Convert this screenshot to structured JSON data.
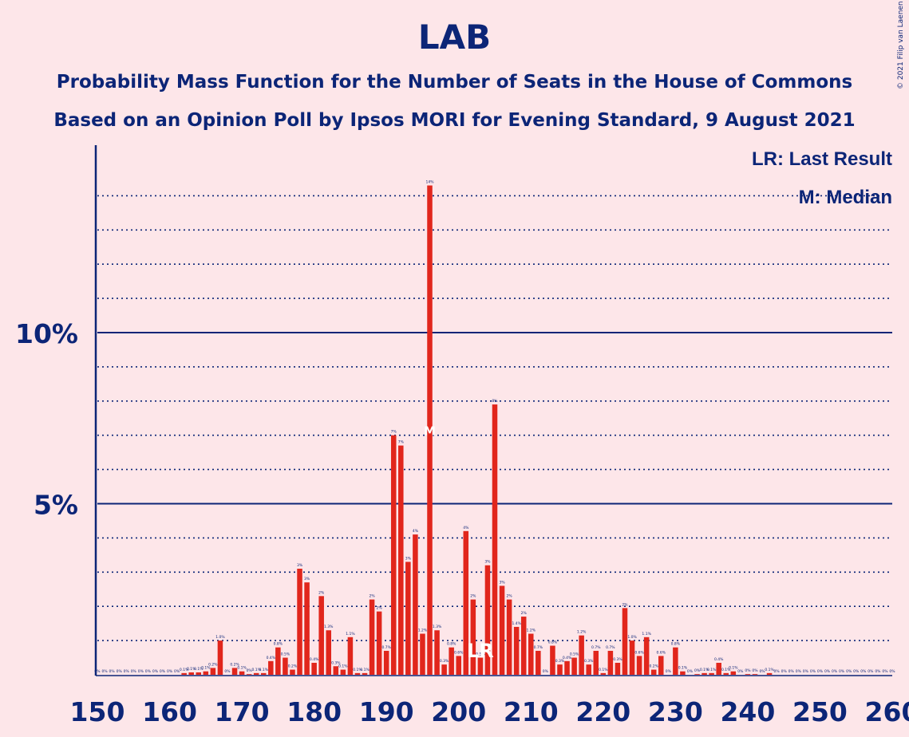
{
  "title": "LAB",
  "subtitle": "Probability Mass Function for the Number of Seats in the House of Commons",
  "subtitle2": "Based on an Opinion Poll by Ipsos MORI for Evening Standard, 9 August 2021",
  "copyright": "© 2021 Filip van Laenen",
  "legend": {
    "last_result": "LR: Last Result",
    "median": "M: Median"
  },
  "markers": {
    "last_result_label": "LR",
    "median_label": "M"
  },
  "colors": {
    "background": "#fde6e9",
    "bar": "#e1261c",
    "axis": "#0c2577"
  },
  "chart_data": {
    "type": "bar",
    "x_start": 150,
    "x_end": 260,
    "xticks": [
      150,
      160,
      170,
      180,
      190,
      200,
      210,
      220,
      230,
      240,
      250,
      260
    ],
    "ylim": [
      0,
      15.5
    ],
    "yticks": [
      {
        "value": 5,
        "label": "5%"
      },
      {
        "value": 10,
        "label": "10%"
      }
    ],
    "minor_grid": [
      1,
      2,
      3,
      4,
      6,
      7,
      8,
      9,
      11,
      12,
      13,
      14
    ],
    "last_result": 203,
    "median": 196,
    "values": [
      0,
      0,
      0,
      0,
      0,
      0,
      0,
      0,
      0,
      0,
      0,
      0,
      0.05,
      0.07,
      0.07,
      0.1,
      0.2,
      1.0,
      0,
      0.2,
      0.1,
      0.02,
      0.05,
      0.05,
      0.4,
      0.8,
      0.5,
      0.15,
      3.1,
      2.7,
      0.35,
      2.3,
      1.3,
      0.25,
      0.15,
      1.1,
      0.05,
      0.05,
      2.2,
      1.85,
      0.7,
      7.0,
      6.7,
      3.3,
      4.1,
      1.2,
      14.3,
      1.3,
      0.3,
      0.8,
      0.55,
      4.2,
      2.2,
      0.5,
      3.2,
      7.9,
      2.6,
      2.2,
      1.4,
      1.7,
      1.2,
      0.7,
      0,
      0.85,
      0.3,
      0.4,
      0.5,
      1.15,
      0.3,
      0.7,
      0.05,
      0.7,
      0.35,
      1.95,
      1.0,
      0.55,
      1.1,
      0.15,
      0.55,
      0,
      0.8,
      0.1,
      0,
      0.02,
      0.05,
      0.05,
      0.35,
      0.05,
      0.1,
      0,
      0.02,
      0.02,
      0,
      0.05,
      0,
      0,
      0,
      0,
      0,
      0,
      0,
      0,
      0,
      0,
      0,
      0,
      0,
      0,
      0,
      0,
      0
    ],
    "bar_labels": [
      "0%",
      "0%",
      "0%",
      "0%",
      "0%",
      "0%",
      "0%",
      "0%",
      "0%",
      "0%",
      "0%",
      "0%",
      "0.1%",
      "0.1%",
      "0.1%",
      "0.1%",
      "0.2%",
      "1.0%",
      "0%",
      "0.2%",
      "0.1%",
      "0%",
      "0.1%",
      "0.1%",
      "0.4%",
      "0.8%",
      "0.5%",
      "0.2%",
      "3%",
      "3%",
      "0.4%",
      "2%",
      "1.3%",
      "0.3%",
      "0.1%",
      "1.1%",
      "0.1%",
      "0.1%",
      "2%",
      "2%",
      "0.7%",
      "7%",
      "7%",
      "3%",
      "4%",
      "1.2%",
      "14%",
      "1.3%",
      "0.3%",
      "0.8%",
      "0.6%",
      "4%",
      "2%",
      "0.5%",
      "3%",
      "8%",
      "3%",
      "2%",
      "1.4%",
      "2%",
      "1.2%",
      "0.7%",
      "0%",
      "0.8%",
      "0.3%",
      "0.4%",
      "0.5%",
      "1.2%",
      "0.3%",
      "0.7%",
      "0.1%",
      "0.7%",
      "0.3%",
      "2%",
      "1.0%",
      "0.6%",
      "1.1%",
      "0.2%",
      "0.6%",
      "0%",
      "0.8%",
      "0.1%",
      "0%",
      "0%",
      "0.1%",
      "0.1%",
      "0.4%",
      "0.1%",
      "0.1%",
      "0%",
      "0%",
      "0%",
      "0%",
      "0.1%",
      "0%",
      "0%",
      "0%",
      "0%",
      "0%",
      "0%",
      "0%",
      "0%",
      "0%",
      "0%",
      "0%",
      "0%",
      "0%",
      "0%",
      "0%",
      "0%",
      "0%"
    ]
  }
}
